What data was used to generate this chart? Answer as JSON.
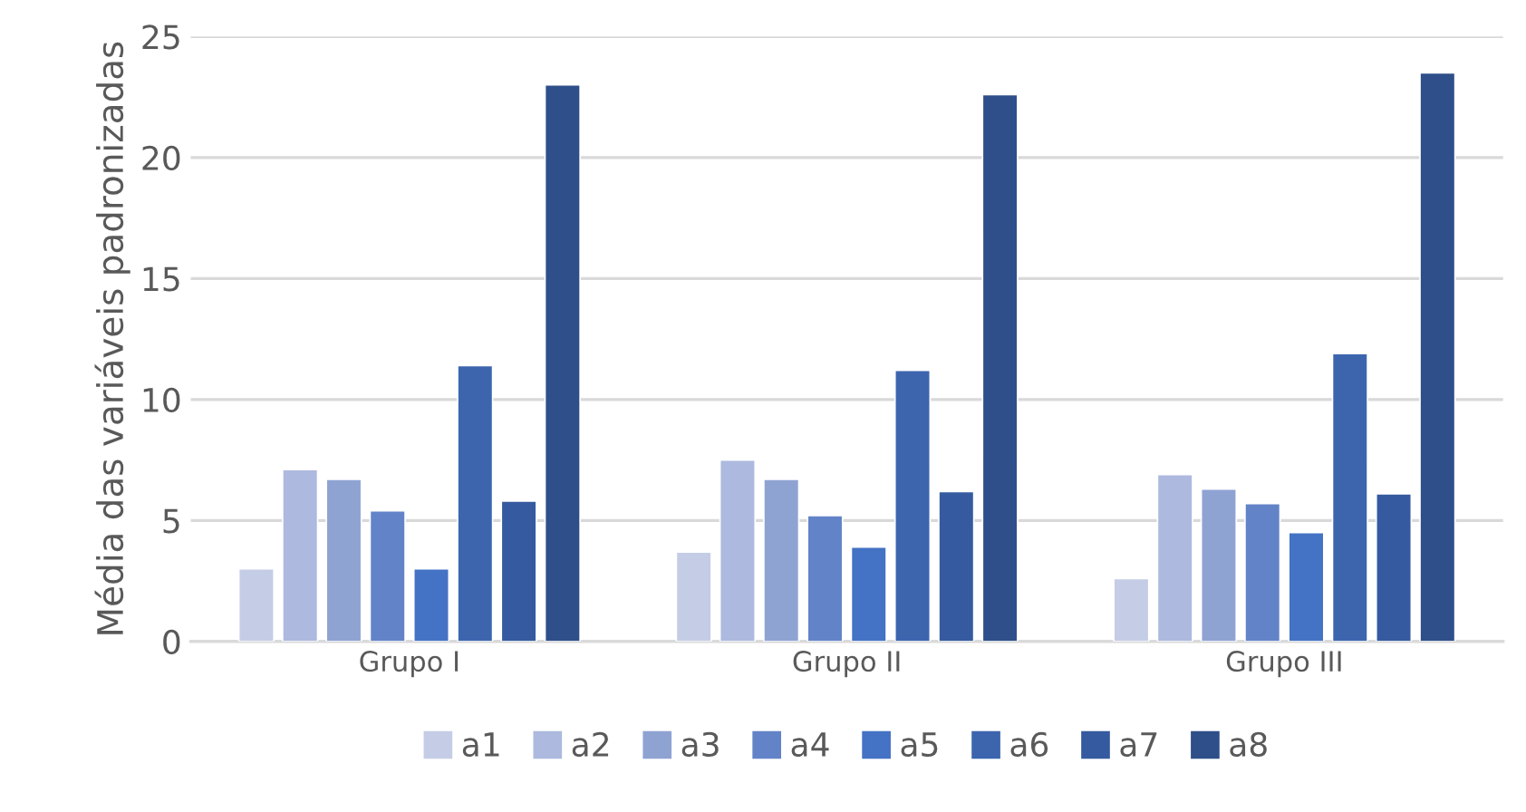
{
  "chart_data": {
    "type": "bar",
    "ylabel": "Média das variáveis padronizadas",
    "categories": [
      "Grupo I",
      "Grupo II",
      "Grupo III"
    ],
    "series": [
      {
        "name": "a1",
        "color": "#c5cde6",
        "values": [
          3.0,
          3.7,
          2.6
        ]
      },
      {
        "name": "a2",
        "color": "#adb9de",
        "values": [
          7.1,
          7.5,
          6.9
        ]
      },
      {
        "name": "a3",
        "color": "#8fa3d3",
        "values": [
          6.7,
          6.7,
          6.3
        ]
      },
      {
        "name": "a4",
        "color": "#6383c8",
        "values": [
          5.4,
          5.2,
          5.7
        ]
      },
      {
        "name": "a5",
        "color": "#4472c4",
        "values": [
          3.0,
          3.9,
          4.5
        ]
      },
      {
        "name": "a6",
        "color": "#3c65ae",
        "values": [
          11.4,
          11.2,
          11.9
        ]
      },
      {
        "name": "a7",
        "color": "#355a9f",
        "values": [
          5.8,
          6.2,
          6.1
        ]
      },
      {
        "name": "a8",
        "color": "#2e4f89",
        "values": [
          23.0,
          22.6,
          23.5
        ]
      }
    ],
    "ylim": [
      0,
      25
    ],
    "yticks": [
      0,
      5,
      10,
      15,
      20,
      25
    ],
    "grid": "y",
    "legend": "bottom"
  }
}
